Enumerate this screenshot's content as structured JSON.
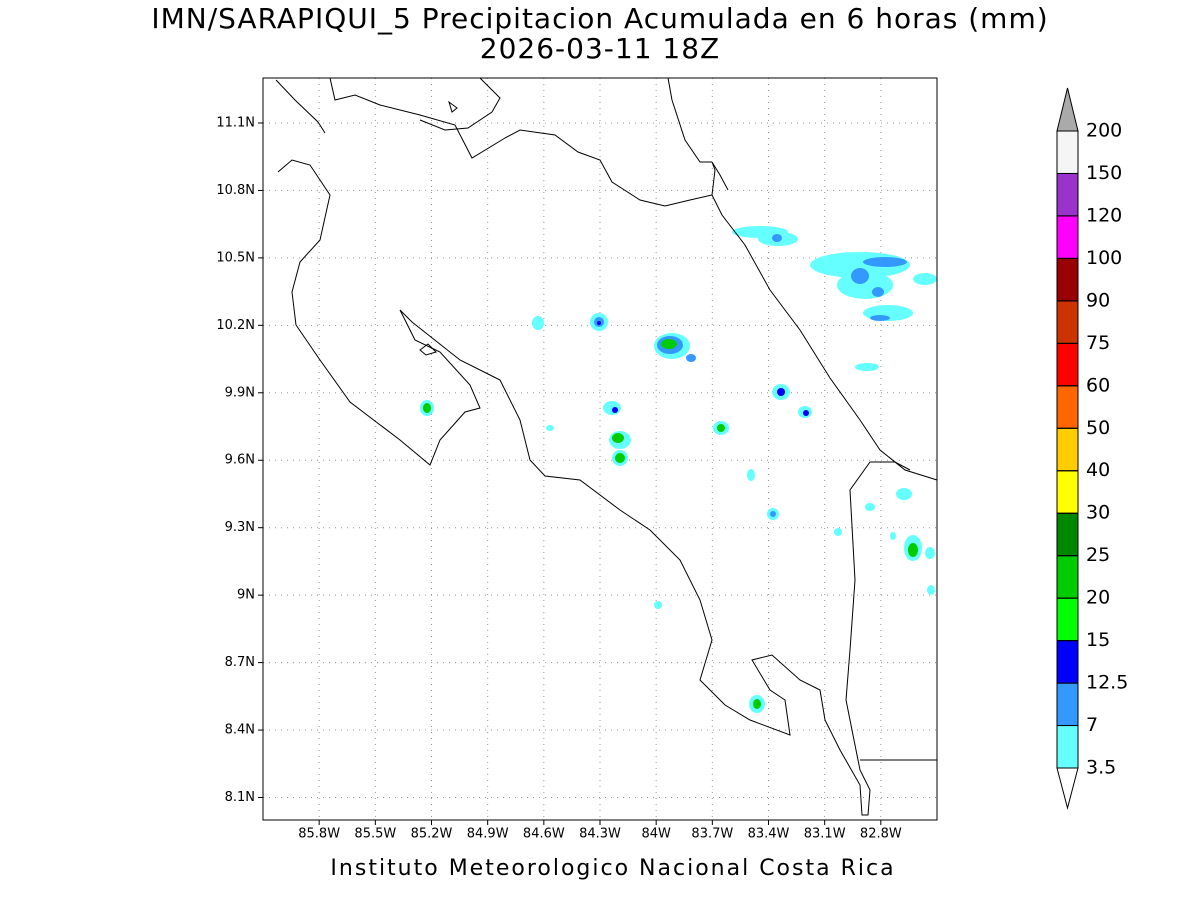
{
  "title": "IMN/SARAPIQUI_5 Precipitacion Acumulada en 6 horas (mm)",
  "subtitle": "2026-03-11 18Z",
  "footer": "Instituto Meteorologico Nacional Costa Rica",
  "map": {
    "lonlim": [
      -86.1,
      -82.5
    ],
    "latlim": [
      8.0,
      11.3
    ],
    "lon_ticks": [
      {
        "value": -85.8,
        "label": "85.8W"
      },
      {
        "value": -85.5,
        "label": "85.5W"
      },
      {
        "value": -85.2,
        "label": "85.2W"
      },
      {
        "value": -84.9,
        "label": "84.9W"
      },
      {
        "value": -84.6,
        "label": "84.6W"
      },
      {
        "value": -84.3,
        "label": "84.3W"
      },
      {
        "value": -84.0,
        "label": "84W"
      },
      {
        "value": -83.7,
        "label": "83.7W"
      },
      {
        "value": -83.4,
        "label": "83.4W"
      },
      {
        "value": -83.1,
        "label": "83.1W"
      },
      {
        "value": -82.8,
        "label": "82.8W"
      }
    ],
    "lat_ticks": [
      {
        "value": 8.1,
        "label": "8.1N"
      },
      {
        "value": 8.4,
        "label": "8.4N"
      },
      {
        "value": 8.7,
        "label": "8.7N"
      },
      {
        "value": 9.0,
        "label": "9N"
      },
      {
        "value": 9.3,
        "label": "9.3N"
      },
      {
        "value": 9.6,
        "label": "9.6N"
      },
      {
        "value": 9.9,
        "label": "9.9N"
      },
      {
        "value": 10.2,
        "label": "10.2N"
      },
      {
        "value": 10.5,
        "label": "10.5N"
      },
      {
        "value": 10.8,
        "label": "10.8N"
      },
      {
        "value": 11.1,
        "label": "11.1N"
      }
    ]
  },
  "colorbar": {
    "levels": [
      3.5,
      7,
      12.5,
      15,
      20,
      25,
      30,
      40,
      50,
      60,
      75,
      90,
      100,
      120,
      150,
      200
    ],
    "colors": [
      "#66ffff",
      "#3399ff",
      "#0000ff",
      "#00ff00",
      "#00cc00",
      "#008800",
      "#ffff00",
      "#ffcc00",
      "#ff6600",
      "#ff0000",
      "#cc3300",
      "#990000",
      "#ff00ff",
      "#9933cc",
      "#f5f5f5"
    ],
    "under_color": "#ffffff",
    "over_color": "#aaaaaa"
  }
}
